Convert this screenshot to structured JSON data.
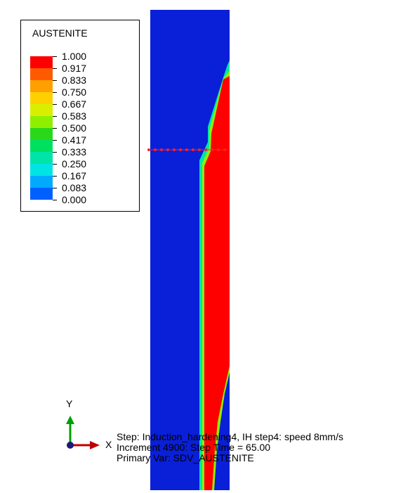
{
  "legend": {
    "title": "AUSTENITE",
    "levels": [
      "1.000",
      "0.917",
      "0.833",
      "0.750",
      "0.667",
      "0.583",
      "0.500",
      "0.417",
      "0.333",
      "0.250",
      "0.167",
      "0.083",
      "0.000"
    ],
    "colors": [
      "#ff0000",
      "#ff5a00",
      "#ffa000",
      "#ffd000",
      "#d8f000",
      "#8ef000",
      "#2ad81a",
      "#00e060",
      "#00e4a8",
      "#00e4e4",
      "#00aaff",
      "#0060ff",
      "#0000ff"
    ]
  },
  "contour": {
    "background_color": "#0a1fd8",
    "hot_color": "#ff0000",
    "marker_color": "#ff2020"
  },
  "triad": {
    "y_label": "Y",
    "x_label": "X",
    "y_color": "#00a000",
    "x_color": "#c00000"
  },
  "info": {
    "line1": "Step: Induction_hardening4, IH step4:  speed 8mm/s",
    "line2": "Increment   4900: Step Time =    65.00",
    "line3": "Primary Var: SDV_AUSTENITE"
  }
}
